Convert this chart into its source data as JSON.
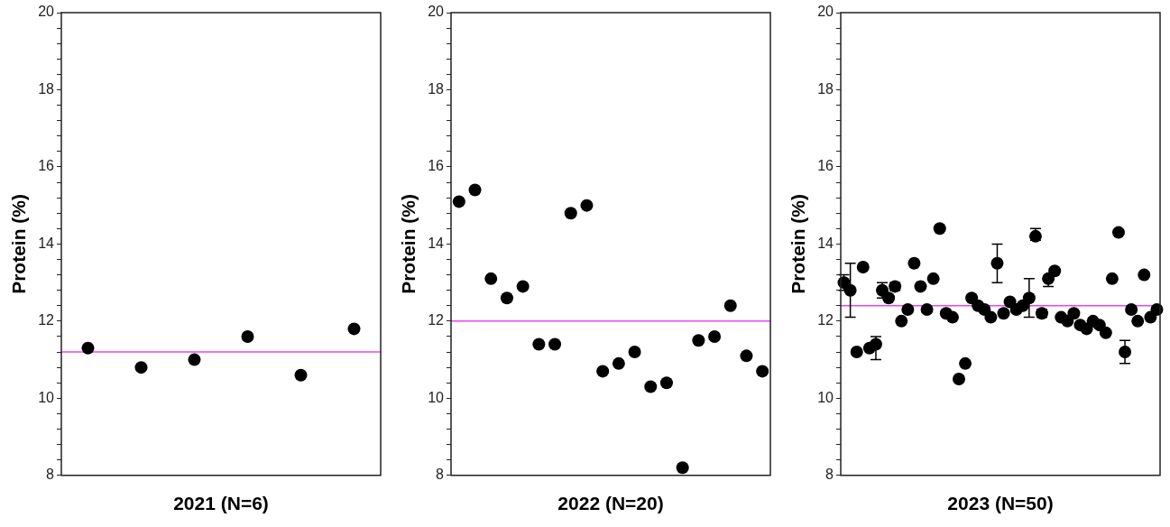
{
  "chart_data": [
    {
      "type": "scatter",
      "xlabel": "2021 (N=6)",
      "ylabel": "Protein (%)",
      "categories": [
        null,
        null,
        null,
        null,
        null,
        null
      ],
      "marker": "circle",
      "tick_labels": "y",
      "series": [
        {
          "color": "#000000",
          "values": [
            11.3,
            10.8,
            11.0,
            11.6,
            10.6,
            11.8
          ]
        }
      ],
      "ylim": [
        8,
        20
      ],
      "yticks": [
        8,
        {
          "value": 8.4,
          "label": null
        },
        {
          "value": 8.8,
          "label": null
        },
        {
          "value": 9.2,
          "label": null
        },
        {
          "value": 9.6,
          "label": null
        },
        10,
        {
          "value": 10.4,
          "label": null
        },
        {
          "value": 10.8,
          "label": null
        },
        {
          "value": 11.2,
          "label": null
        },
        {
          "value": 11.6,
          "label": null
        },
        12,
        {
          "value": 12.4,
          "label": null
        },
        {
          "value": 12.8,
          "label": null
        },
        {
          "value": 13.2,
          "label": null
        },
        {
          "value": 13.6,
          "label": null
        },
        14,
        {
          "value": 14.4,
          "label": null
        },
        {
          "value": 14.8,
          "label": null
        },
        {
          "value": 15.2,
          "label": null
        },
        {
          "value": 15.6,
          "label": null
        },
        16,
        {
          "value": 16.4,
          "label": null
        },
        {
          "value": 16.8,
          "label": null
        },
        {
          "value": 17.2,
          "label": null
        },
        {
          "value": 17.6,
          "label": null
        },
        18,
        {
          "value": 18.4,
          "label": null
        },
        {
          "value": 18.8,
          "label": null
        },
        {
          "value": 19.2,
          "label": null
        },
        {
          "value": 19.6,
          "label": null
        },
        20
      ],
      "ref_lines": [
        {
          "axis": "y",
          "value": 11.2,
          "color": "#ee44ee"
        }
      ]
    },
    {
      "type": "scatter",
      "xlabel": "2022 (N=20)",
      "ylabel": "Protein (%)",
      "categories": [
        null,
        null,
        null,
        null,
        null,
        null,
        null,
        null,
        null,
        null,
        null,
        null,
        null,
        null,
        null,
        null,
        null,
        null,
        null,
        null
      ],
      "marker": "circle",
      "tick_labels": "y",
      "series": [
        {
          "color": "#000000",
          "values": [
            15.1,
            15.4,
            13.1,
            12.6,
            12.9,
            11.4,
            11.4,
            14.8,
            15.0,
            10.7,
            10.9,
            11.2,
            10.3,
            10.4,
            8.2,
            11.5,
            11.6,
            12.4,
            11.1,
            10.7
          ]
        }
      ],
      "ylim": [
        8,
        20
      ],
      "yticks": [
        8,
        {
          "value": 8.4,
          "label": null
        },
        {
          "value": 8.8,
          "label": null
        },
        {
          "value": 9.2,
          "label": null
        },
        {
          "value": 9.6,
          "label": null
        },
        10,
        {
          "value": 10.4,
          "label": null
        },
        {
          "value": 10.8,
          "label": null
        },
        {
          "value": 11.2,
          "label": null
        },
        {
          "value": 11.6,
          "label": null
        },
        12,
        {
          "value": 12.4,
          "label": null
        },
        {
          "value": 12.8,
          "label": null
        },
        {
          "value": 13.2,
          "label": null
        },
        {
          "value": 13.6,
          "label": null
        },
        14,
        {
          "value": 14.4,
          "label": null
        },
        {
          "value": 14.8,
          "label": null
        },
        {
          "value": 15.2,
          "label": null
        },
        {
          "value": 15.6,
          "label": null
        },
        16,
        {
          "value": 16.4,
          "label": null
        },
        {
          "value": 16.8,
          "label": null
        },
        {
          "value": 17.2,
          "label": null
        },
        {
          "value": 17.6,
          "label": null
        },
        18,
        {
          "value": 18.4,
          "label": null
        },
        {
          "value": 18.8,
          "label": null
        },
        {
          "value": 19.2,
          "label": null
        },
        {
          "value": 19.6,
          "label": null
        },
        20
      ],
      "ref_lines": [
        {
          "axis": "y",
          "value": 12.0,
          "color": "#ee44ee"
        }
      ]
    },
    {
      "type": "scatter",
      "xlabel": "2023 (N=50)",
      "ylabel": "Protein (%)",
      "categories": [
        null,
        null,
        null,
        null,
        null,
        null,
        null,
        null,
        null,
        null,
        null,
        null,
        null,
        null,
        null,
        null,
        null,
        null,
        null,
        null,
        null,
        null,
        null,
        null,
        null,
        null,
        null,
        null,
        null,
        null,
        null,
        null,
        null,
        null,
        null,
        null,
        null,
        null,
        null,
        null,
        null,
        null,
        null,
        null,
        null,
        null,
        null,
        null,
        null,
        null
      ],
      "marker": "circle",
      "tick_labels": "y",
      "series": [
        {
          "color": "#000000",
          "values": [
            13.0,
            12.8,
            11.2,
            13.4,
            11.3,
            11.4,
            12.8,
            12.6,
            12.9,
            12.0,
            12.3,
            13.5,
            12.9,
            12.3,
            13.1,
            14.4,
            12.2,
            12.1,
            10.5,
            10.9,
            12.6,
            12.4,
            12.3,
            12.1,
            13.5,
            12.2,
            12.5,
            12.3,
            12.4,
            12.6,
            14.2,
            12.2,
            13.1,
            13.3,
            12.1,
            12.0,
            12.2,
            11.9,
            11.8,
            12.0,
            11.9,
            11.7,
            13.1,
            14.3,
            11.2,
            12.3,
            12.0,
            13.2,
            12.1,
            12.3
          ],
          "errors": [
            [
              12.8,
              13.2
            ],
            [
              12.1,
              13.5
            ],
            null,
            null,
            null,
            [
              11.0,
              11.6
            ],
            [
              12.6,
              13.0
            ],
            null,
            [
              12.8,
              13.0
            ],
            null,
            null,
            null,
            null,
            null,
            null,
            null,
            null,
            null,
            null,
            null,
            null,
            null,
            null,
            null,
            [
              13.0,
              14.0
            ],
            null,
            null,
            null,
            null,
            [
              12.1,
              13.1
            ],
            [
              14.1,
              14.4
            ],
            [
              12.1,
              12.3
            ],
            [
              12.9,
              13.1
            ],
            null,
            null,
            null,
            null,
            null,
            null,
            null,
            null,
            null,
            null,
            null,
            [
              10.9,
              11.5
            ],
            null,
            null,
            null,
            null,
            null
          ]
        }
      ],
      "ylim": [
        8,
        20
      ],
      "yticks": [
        8,
        {
          "value": 8.4,
          "label": null
        },
        {
          "value": 8.8,
          "label": null
        },
        {
          "value": 9.2,
          "label": null
        },
        {
          "value": 9.6,
          "label": null
        },
        10,
        {
          "value": 10.4,
          "label": null
        },
        {
          "value": 10.8,
          "label": null
        },
        {
          "value": 11.2,
          "label": null
        },
        {
          "value": 11.6,
          "label": null
        },
        12,
        {
          "value": 12.4,
          "label": null
        },
        {
          "value": 12.8,
          "label": null
        },
        {
          "value": 13.2,
          "label": null
        },
        {
          "value": 13.6,
          "label": null
        },
        14,
        {
          "value": 14.4,
          "label": null
        },
        {
          "value": 14.8,
          "label": null
        },
        {
          "value": 15.2,
          "label": null
        },
        {
          "value": 15.6,
          "label": null
        },
        16,
        {
          "value": 16.4,
          "label": null
        },
        {
          "value": 16.8,
          "label": null
        },
        {
          "value": 17.2,
          "label": null
        },
        {
          "value": 17.6,
          "label": null
        },
        18,
        {
          "value": 18.4,
          "label": null
        },
        {
          "value": 18.8,
          "label": null
        },
        {
          "value": 19.2,
          "label": null
        },
        {
          "value": 19.6,
          "label": null
        },
        20
      ],
      "ref_lines": [
        {
          "axis": "y",
          "value": 12.4,
          "color": "#ee44ee"
        }
      ]
    }
  ]
}
